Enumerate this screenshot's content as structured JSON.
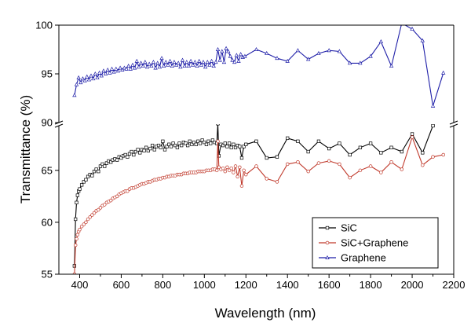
{
  "chart_data": {
    "type": "line",
    "broken_y_axis": true,
    "xlabel": "Wavelength (nm)",
    "ylabel": "Transmittance (%)",
    "xlim": [
      300,
      2200
    ],
    "x_ticks": [
      400,
      600,
      800,
      1000,
      1200,
      1400,
      1600,
      1800,
      2000,
      2200
    ],
    "y_lower_range": [
      55,
      69.3
    ],
    "y_upper_range": [
      90,
      100
    ],
    "y_lower_ticks": [
      55,
      60,
      65
    ],
    "y_upper_ticks": [
      90,
      95,
      100
    ],
    "legend_position": "lower-right",
    "series": [
      {
        "name": "SiC",
        "color": "#000000",
        "marker": "square",
        "axis_segment": "lower",
        "points": [
          [
            375,
            55.8
          ],
          [
            380,
            60.3
          ],
          [
            385,
            61.9
          ],
          [
            390,
            62.6
          ],
          [
            395,
            63.0
          ],
          [
            400,
            63.2
          ],
          [
            410,
            63.6
          ],
          [
            420,
            63.9
          ],
          [
            430,
            64.1
          ],
          [
            440,
            64.4
          ],
          [
            450,
            64.6
          ],
          [
            460,
            64.5
          ],
          [
            470,
            64.9
          ],
          [
            480,
            65.1
          ],
          [
            490,
            64.9
          ],
          [
            500,
            65.4
          ],
          [
            510,
            65.6
          ],
          [
            520,
            65.4
          ],
          [
            530,
            65.7
          ],
          [
            540,
            65.9
          ],
          [
            550,
            65.8
          ],
          [
            560,
            66.0
          ],
          [
            570,
            66.1
          ],
          [
            580,
            66.0
          ],
          [
            590,
            66.3
          ],
          [
            600,
            66.2
          ],
          [
            610,
            66.4
          ],
          [
            620,
            66.5
          ],
          [
            630,
            66.3
          ],
          [
            640,
            66.6
          ],
          [
            650,
            66.8
          ],
          [
            660,
            66.5
          ],
          [
            670,
            66.8
          ],
          [
            680,
            67.0
          ],
          [
            690,
            66.7
          ],
          [
            700,
            67.0
          ],
          [
            710,
            66.9
          ],
          [
            720,
            67.2
          ],
          [
            730,
            66.9
          ],
          [
            740,
            67.1
          ],
          [
            750,
            67.4
          ],
          [
            760,
            67.0
          ],
          [
            770,
            67.3
          ],
          [
            780,
            67.4
          ],
          [
            790,
            67.2
          ],
          [
            800,
            67.8
          ],
          [
            810,
            67.0
          ],
          [
            820,
            67.3
          ],
          [
            830,
            67.5
          ],
          [
            840,
            67.3
          ],
          [
            850,
            67.6
          ],
          [
            860,
            67.4
          ],
          [
            870,
            67.2
          ],
          [
            880,
            67.6
          ],
          [
            890,
            67.4
          ],
          [
            900,
            67.7
          ],
          [
            910,
            67.6
          ],
          [
            920,
            67.4
          ],
          [
            930,
            67.8
          ],
          [
            940,
            67.5
          ],
          [
            950,
            67.7
          ],
          [
            960,
            67.5
          ],
          [
            970,
            67.8
          ],
          [
            980,
            67.6
          ],
          [
            990,
            67.9
          ],
          [
            1000,
            67.7
          ],
          [
            1010,
            67.5
          ],
          [
            1020,
            67.8
          ],
          [
            1030,
            67.6
          ],
          [
            1040,
            67.9
          ],
          [
            1050,
            67.7
          ],
          [
            1060,
            67.6
          ],
          [
            1065,
            69.5
          ],
          [
            1070,
            66.4
          ],
          [
            1080,
            67.5
          ],
          [
            1090,
            67.4
          ],
          [
            1100,
            67.6
          ],
          [
            1110,
            67.3
          ],
          [
            1120,
            67.6
          ],
          [
            1130,
            67.2
          ],
          [
            1140,
            67.5
          ],
          [
            1150,
            67.2
          ],
          [
            1160,
            67.4
          ],
          [
            1170,
            67.3
          ],
          [
            1180,
            66.2
          ],
          [
            1190,
            67.3
          ],
          [
            1200,
            67.5
          ],
          [
            1250,
            67.8
          ],
          [
            1300,
            66.2
          ],
          [
            1350,
            66.3
          ],
          [
            1400,
            68.1
          ],
          [
            1450,
            67.8
          ],
          [
            1500,
            66.8
          ],
          [
            1550,
            67.8
          ],
          [
            1600,
            67.1
          ],
          [
            1650,
            67.6
          ],
          [
            1700,
            66.5
          ],
          [
            1750,
            67.2
          ],
          [
            1800,
            67.6
          ],
          [
            1850,
            66.7
          ],
          [
            1900,
            67.2
          ],
          [
            1950,
            66.8
          ],
          [
            2000,
            68.5
          ],
          [
            2050,
            66.7
          ],
          [
            2100,
            69.3
          ]
        ]
      },
      {
        "name": "SiC+Graphene",
        "color": "#c0392b",
        "marker": "circle",
        "axis_segment": "lower",
        "points": [
          [
            375,
            55.0
          ],
          [
            380,
            57.8
          ],
          [
            385,
            58.4
          ],
          [
            390,
            58.8
          ],
          [
            395,
            59.1
          ],
          [
            400,
            59.3
          ],
          [
            410,
            59.6
          ],
          [
            420,
            59.8
          ],
          [
            430,
            60.0
          ],
          [
            440,
            60.3
          ],
          [
            450,
            60.5
          ],
          [
            460,
            60.7
          ],
          [
            470,
            60.9
          ],
          [
            480,
            61.1
          ],
          [
            490,
            61.2
          ],
          [
            500,
            61.4
          ],
          [
            510,
            61.6
          ],
          [
            520,
            61.7
          ],
          [
            530,
            61.9
          ],
          [
            540,
            62.0
          ],
          [
            550,
            62.1
          ],
          [
            560,
            62.3
          ],
          [
            570,
            62.4
          ],
          [
            580,
            62.5
          ],
          [
            590,
            62.7
          ],
          [
            600,
            62.8
          ],
          [
            610,
            62.9
          ],
          [
            620,
            63.0
          ],
          [
            630,
            63.0
          ],
          [
            640,
            63.2
          ],
          [
            650,
            63.3
          ],
          [
            660,
            63.3
          ],
          [
            670,
            63.4
          ],
          [
            680,
            63.5
          ],
          [
            690,
            63.6
          ],
          [
            700,
            63.7
          ],
          [
            710,
            63.7
          ],
          [
            720,
            63.8
          ],
          [
            730,
            63.9
          ],
          [
            740,
            63.9
          ],
          [
            750,
            64.0
          ],
          [
            760,
            64.1
          ],
          [
            770,
            64.1
          ],
          [
            780,
            64.2
          ],
          [
            790,
            64.2
          ],
          [
            800,
            64.3
          ],
          [
            810,
            64.3
          ],
          [
            820,
            64.4
          ],
          [
            830,
            64.4
          ],
          [
            840,
            64.5
          ],
          [
            850,
            64.5
          ],
          [
            860,
            64.5
          ],
          [
            870,
            64.6
          ],
          [
            880,
            64.6
          ],
          [
            890,
            64.6
          ],
          [
            900,
            64.7
          ],
          [
            910,
            64.7
          ],
          [
            920,
            64.7
          ],
          [
            930,
            64.8
          ],
          [
            940,
            64.8
          ],
          [
            950,
            64.8
          ],
          [
            960,
            64.8
          ],
          [
            970,
            64.9
          ],
          [
            980,
            64.9
          ],
          [
            990,
            64.9
          ],
          [
            1000,
            64.9
          ],
          [
            1010,
            65.0
          ],
          [
            1020,
            65.0
          ],
          [
            1030,
            65.0
          ],
          [
            1040,
            65.1
          ],
          [
            1050,
            65.1
          ],
          [
            1060,
            65.0
          ],
          [
            1065,
            67.8
          ],
          [
            1070,
            65.3
          ],
          [
            1080,
            65.1
          ],
          [
            1090,
            65.2
          ],
          [
            1100,
            64.9
          ],
          [
            1110,
            65.3
          ],
          [
            1120,
            65.0
          ],
          [
            1130,
            65.2
          ],
          [
            1140,
            64.8
          ],
          [
            1150,
            65.4
          ],
          [
            1160,
            64.4
          ],
          [
            1170,
            65.3
          ],
          [
            1180,
            63.5
          ],
          [
            1190,
            65.0
          ],
          [
            1200,
            64.6
          ],
          [
            1250,
            65.4
          ],
          [
            1300,
            64.2
          ],
          [
            1350,
            63.9
          ],
          [
            1400,
            65.6
          ],
          [
            1450,
            65.8
          ],
          [
            1500,
            64.9
          ],
          [
            1550,
            65.7
          ],
          [
            1600,
            65.9
          ],
          [
            1650,
            65.6
          ],
          [
            1700,
            64.3
          ],
          [
            1750,
            65.0
          ],
          [
            1800,
            65.4
          ],
          [
            1850,
            64.8
          ],
          [
            1900,
            65.8
          ],
          [
            1950,
            65.1
          ],
          [
            2000,
            68.2
          ],
          [
            2050,
            65.5
          ],
          [
            2100,
            66.3
          ],
          [
            2150,
            66.5
          ]
        ]
      },
      {
        "name": "Graphene",
        "color": "#1f1fa8",
        "marker": "triangle",
        "axis_segment": "upper",
        "points": [
          [
            375,
            92.8
          ],
          [
            385,
            93.9
          ],
          [
            395,
            94.6
          ],
          [
            405,
            94.1
          ],
          [
            415,
            94.5
          ],
          [
            425,
            94.3
          ],
          [
            435,
            94.7
          ],
          [
            445,
            94.4
          ],
          [
            455,
            94.8
          ],
          [
            465,
            94.5
          ],
          [
            475,
            95.0
          ],
          [
            485,
            94.6
          ],
          [
            495,
            95.1
          ],
          [
            505,
            94.8
          ],
          [
            515,
            95.3
          ],
          [
            525,
            95.0
          ],
          [
            535,
            95.4
          ],
          [
            545,
            95.1
          ],
          [
            555,
            95.5
          ],
          [
            565,
            95.2
          ],
          [
            575,
            95.5
          ],
          [
            585,
            95.3
          ],
          [
            595,
            95.6
          ],
          [
            605,
            95.4
          ],
          [
            615,
            95.6
          ],
          [
            625,
            95.5
          ],
          [
            635,
            95.8
          ],
          [
            645,
            95.5
          ],
          [
            655,
            95.9
          ],
          [
            665,
            95.6
          ],
          [
            675,
            96.3
          ],
          [
            685,
            95.7
          ],
          [
            695,
            96.1
          ],
          [
            705,
            95.8
          ],
          [
            715,
            96.2
          ],
          [
            725,
            95.7
          ],
          [
            735,
            96.0
          ],
          [
            745,
            95.8
          ],
          [
            755,
            96.2
          ],
          [
            765,
            95.6
          ],
          [
            775,
            96.1
          ],
          [
            785,
            95.7
          ],
          [
            795,
            96.6
          ],
          [
            805,
            95.8
          ],
          [
            815,
            96.2
          ],
          [
            825,
            95.9
          ],
          [
            835,
            96.3
          ],
          [
            845,
            95.8
          ],
          [
            855,
            96.2
          ],
          [
            865,
            95.9
          ],
          [
            875,
            96.1
          ],
          [
            885,
            95.7
          ],
          [
            895,
            96.4
          ],
          [
            905,
            95.8
          ],
          [
            915,
            96.2
          ],
          [
            925,
            95.8
          ],
          [
            935,
            96.3
          ],
          [
            945,
            95.9
          ],
          [
            955,
            96.2
          ],
          [
            965,
            95.8
          ],
          [
            975,
            96.3
          ],
          [
            985,
            95.9
          ],
          [
            995,
            96.2
          ],
          [
            1005,
            95.7
          ],
          [
            1015,
            96.2
          ],
          [
            1025,
            95.9
          ],
          [
            1035,
            96.3
          ],
          [
            1045,
            95.8
          ],
          [
            1055,
            96.2
          ],
          [
            1065,
            97.5
          ],
          [
            1075,
            96.4
          ],
          [
            1085,
            97.3
          ],
          [
            1095,
            96.2
          ],
          [
            1105,
            97.6
          ],
          [
            1115,
            97.3
          ],
          [
            1125,
            96.8
          ],
          [
            1135,
            96.4
          ],
          [
            1145,
            96.2
          ],
          [
            1155,
            96.9
          ],
          [
            1165,
            96.3
          ],
          [
            1175,
            97.0
          ],
          [
            1185,
            96.7
          ],
          [
            1195,
            96.8
          ],
          [
            1250,
            97.5
          ],
          [
            1300,
            97.1
          ],
          [
            1350,
            96.6
          ],
          [
            1400,
            96.3
          ],
          [
            1450,
            97.4
          ],
          [
            1500,
            96.5
          ],
          [
            1550,
            97.1
          ],
          [
            1600,
            97.4
          ],
          [
            1650,
            97.3
          ],
          [
            1700,
            96.1
          ],
          [
            1750,
            96.1
          ],
          [
            1800,
            96.8
          ],
          [
            1850,
            98.3
          ],
          [
            1900,
            95.8
          ],
          [
            1950,
            100.2
          ],
          [
            2000,
            99.6
          ],
          [
            2050,
            98.4
          ],
          [
            2100,
            91.7
          ],
          [
            2150,
            95.1
          ]
        ]
      }
    ]
  }
}
